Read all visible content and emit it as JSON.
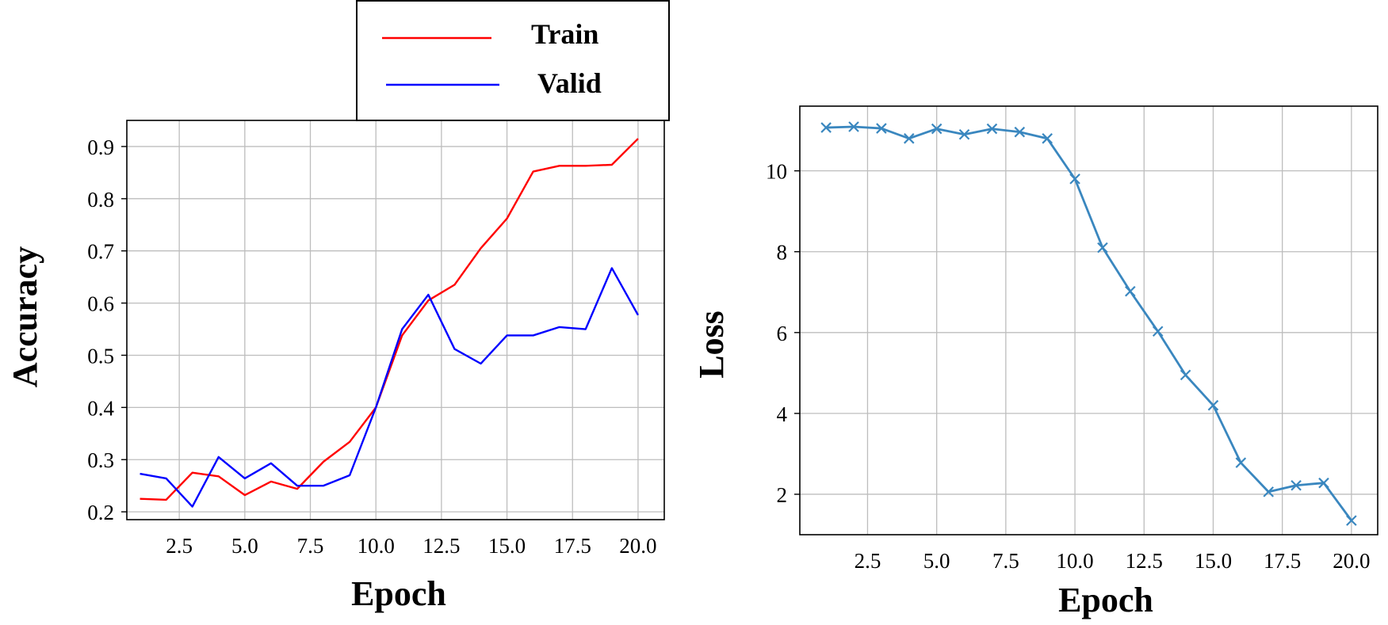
{
  "chart_data": [
    {
      "type": "line",
      "title": "",
      "xlabel": "Epoch",
      "ylabel": "Accuracy",
      "xlim": [
        0.5,
        21.0
      ],
      "ylim": [
        0.185,
        0.95
      ],
      "xticks": [
        2.5,
        5.0,
        7.5,
        10.0,
        12.5,
        15.0,
        17.5,
        20.0
      ],
      "xtick_labels": [
        "2.5",
        "5.0",
        "7.5",
        "10.0",
        "12.5",
        "15.0",
        "17.5",
        "20.0"
      ],
      "yticks": [
        0.2,
        0.3,
        0.4,
        0.5,
        0.6,
        0.7,
        0.8,
        0.9
      ],
      "ytick_labels": [
        "0.2",
        "0.3",
        "0.4",
        "0.5",
        "0.6",
        "0.7",
        "0.8",
        "0.9"
      ],
      "grid": true,
      "legend": "top-center (above plot)",
      "x": [
        1,
        2,
        3,
        4,
        5,
        6,
        7,
        8,
        9,
        10,
        11,
        12,
        13,
        14,
        15,
        16,
        17,
        18,
        19,
        20
      ],
      "series": [
        {
          "name": "Train",
          "color": "#ff0000",
          "values": [
            0.225,
            0.223,
            0.275,
            0.268,
            0.232,
            0.258,
            0.244,
            0.296,
            0.334,
            0.4,
            0.538,
            0.605,
            0.635,
            0.705,
            0.762,
            0.852,
            0.863,
            0.863,
            0.865,
            0.915
          ]
        },
        {
          "name": "Valid",
          "color": "#0000ff",
          "values": [
            0.273,
            0.264,
            0.21,
            0.305,
            0.264,
            0.293,
            0.25,
            0.25,
            0.27,
            0.4,
            0.55,
            0.616,
            0.512,
            0.484,
            0.538,
            0.538,
            0.554,
            0.55,
            0.667,
            0.577
          ]
        }
      ]
    },
    {
      "type": "line",
      "title": "",
      "xlabel": "Epoch",
      "ylabel": "Loss",
      "xlim": [
        0.05,
        20.95
      ],
      "ylim": [
        1.0,
        11.6
      ],
      "xticks": [
        2.5,
        5.0,
        7.5,
        10.0,
        12.5,
        15.0,
        17.5,
        20.0
      ],
      "xtick_labels": [
        "2.5",
        "5.0",
        "7.5",
        "10.0",
        "12.5",
        "15.0",
        "17.5",
        "20.0"
      ],
      "yticks": [
        2,
        4,
        6,
        8,
        10
      ],
      "ytick_labels": [
        "2",
        "4",
        "6",
        "8",
        "10"
      ],
      "grid": true,
      "marker": "x",
      "x": [
        1,
        2,
        3,
        4,
        5,
        6,
        7,
        8,
        9,
        10,
        11,
        12,
        13,
        14,
        15,
        16,
        17,
        18,
        19,
        20
      ],
      "series": [
        {
          "color": "#3a87bf",
          "values": [
            11.07,
            11.09,
            11.05,
            10.8,
            11.04,
            10.9,
            11.04,
            10.96,
            10.8,
            9.8,
            8.1,
            7.02,
            6.03,
            4.95,
            4.2,
            2.78,
            2.06,
            2.22,
            2.28,
            1.35
          ]
        }
      ]
    }
  ]
}
